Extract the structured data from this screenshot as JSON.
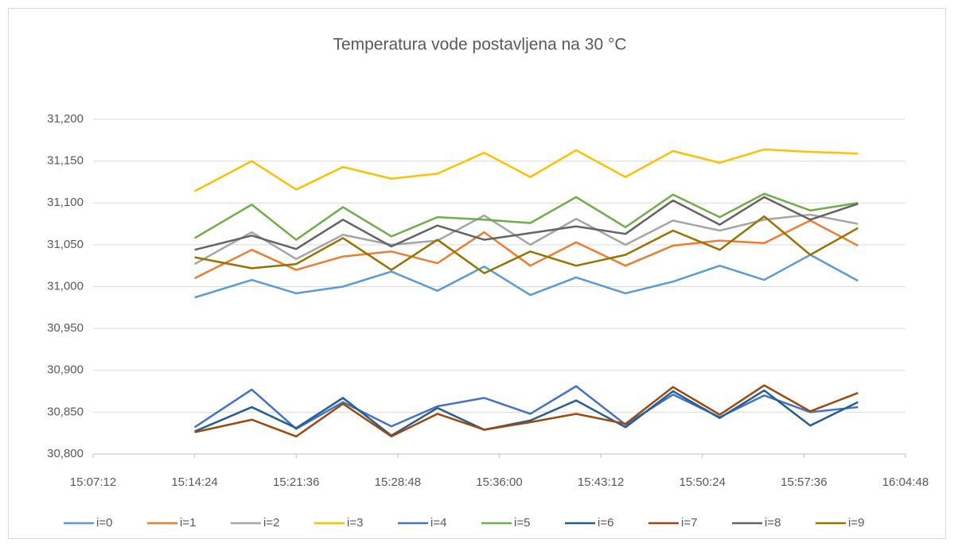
{
  "chart_data": {
    "type": "line",
    "title": "Temperatura vode postavljena na 30 °C",
    "x": [
      "15:14:24",
      "15:18:27",
      "15:21:36",
      "15:24:55",
      "15:28:21",
      "15:31:37",
      "15:34:56",
      "15:38:12",
      "15:41:27",
      "15:44:57",
      "15:48:19",
      "15:51:38",
      "15:54:47",
      "15:58:03",
      "16:01:26"
    ],
    "xlim": [
      "15:07:12",
      "16:04:48"
    ],
    "xticks": [
      "15:07:12",
      "15:14:24",
      "15:21:36",
      "15:28:48",
      "15:36:00",
      "15:43:12",
      "15:50:24",
      "15:57:36",
      "16:04:48"
    ],
    "ylim": [
      30800,
      31200
    ],
    "yticks": [
      {
        "value": 30800,
        "label": "30,800"
      },
      {
        "value": 30850,
        "label": "30,850"
      },
      {
        "value": 30900,
        "label": "30,900"
      },
      {
        "value": 30950,
        "label": "30,950"
      },
      {
        "value": 31000,
        "label": "31,000"
      },
      {
        "value": 31050,
        "label": "31,050"
      },
      {
        "value": 31100,
        "label": "31,100"
      },
      {
        "value": 31150,
        "label": "31,150"
      },
      {
        "value": 31200,
        "label": "31,200"
      }
    ],
    "grid": true,
    "legend": "bottom",
    "series": [
      {
        "name": "i=0",
        "color": "#5b9bd5",
        "values": [
          30987,
          31008,
          30992,
          31000,
          31018,
          30995,
          31024,
          30990,
          31011,
          30992,
          31006,
          31025,
          31008,
          31038,
          31007
        ]
      },
      {
        "name": "i=1",
        "color": "#ed7d31",
        "values": [
          31010,
          31044,
          31020,
          31036,
          31042,
          31028,
          31065,
          31025,
          31053,
          31025,
          31049,
          31055,
          31052,
          31079,
          31049
        ]
      },
      {
        "name": "i=2",
        "color": "#a5a5a5",
        "values": [
          31027,
          31065,
          31033,
          31062,
          31050,
          31055,
          31085,
          31050,
          31081,
          31050,
          31079,
          31067,
          31080,
          31086,
          31075
        ]
      },
      {
        "name": "i=3",
        "color": "#ffc000",
        "values": [
          31114,
          31150,
          31116,
          31143,
          31129,
          31135,
          31160,
          31131,
          31163,
          31131,
          31162,
          31148,
          31164,
          31161,
          31159
        ]
      },
      {
        "name": "i=4",
        "color": "#4472c4",
        "values": [
          30832,
          30877,
          30830,
          30862,
          30833,
          30857,
          30867,
          30848,
          30881,
          30835,
          30871,
          30844,
          30870,
          30850,
          30856
        ]
      },
      {
        "name": "i=5",
        "color": "#70ad47",
        "values": [
          31058,
          31098,
          31056,
          31095,
          31060,
          31083,
          31080,
          31076,
          31107,
          31071,
          31110,
          31083,
          31111,
          31091,
          31100
        ]
      },
      {
        "name": "i=6",
        "color": "#255e91",
        "values": [
          30827,
          30856,
          30831,
          30867,
          30822,
          30855,
          30829,
          30840,
          30864,
          30832,
          30875,
          30843,
          30876,
          30834,
          30862
        ]
      },
      {
        "name": "i=7",
        "color": "#9e480e",
        "values": [
          30826,
          30841,
          30821,
          30860,
          30821,
          30848,
          30829,
          30838,
          30848,
          30836,
          30880,
          30847,
          30882,
          30851,
          30873
        ]
      },
      {
        "name": "i=8",
        "color": "#636363",
        "values": [
          31044,
          31061,
          31045,
          31080,
          31048,
          31073,
          31056,
          31064,
          31072,
          31063,
          31103,
          31074,
          31107,
          31080,
          31099
        ]
      },
      {
        "name": "i=9",
        "color": "#997300",
        "values": [
          31035,
          31022,
          31027,
          31058,
          31020,
          31056,
          31016,
          31042,
          31025,
          31038,
          31067,
          31044,
          31084,
          31038,
          31070
        ]
      }
    ]
  }
}
